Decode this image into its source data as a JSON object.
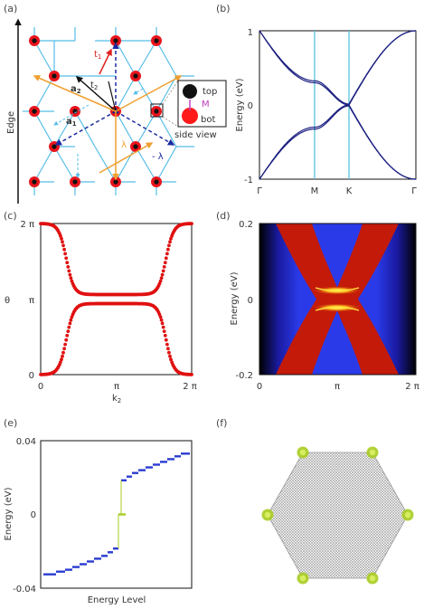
{
  "panels": {
    "a": {
      "label": "(a)",
      "edge": "Edge",
      "a1": "a",
      "a1_sub": "1",
      "a2": "a",
      "a2_sub": "2",
      "t1": "t",
      "t1_sub": "1",
      "t2": "t",
      "t2_sub": "2",
      "lambda": "λ",
      "neg_lambda": "- λ",
      "top": "top",
      "bot": "bot",
      "M": "M",
      "side_view": "side view"
    },
    "b": {
      "label": "(b)"
    },
    "c": {
      "label": "(c)"
    },
    "d": {
      "label": "(d)"
    },
    "e": {
      "label": "(e)"
    },
    "f": {
      "label": "(f)"
    }
  },
  "colors": {
    "lattice": "#55bde8",
    "site": "#e8141c",
    "band": "#1a1e80",
    "marker": "#56c4dc",
    "wcc": "#e01010",
    "level": "#2a3cd0",
    "edge_state": "#a8cc22",
    "arrow_blue": "#1a2aa0",
    "arrow_orange": "#f0a030",
    "arrow_red": "#e02020"
  },
  "chart_data": [
    {
      "panel": "b",
      "type": "line",
      "xlabel": "",
      "ylabel": "Energy (eV)",
      "xticks": [
        "Γ",
        "M",
        "K",
        "Γ"
      ],
      "yticks": [
        "1",
        "0",
        "-1"
      ],
      "ylim": [
        -1,
        1
      ],
      "series": [
        {
          "values_k": [
            0,
            0.33,
            0.43,
            0.48,
            1
          ],
          "values_e": [
            -1,
            -0.34,
            -0.02,
            0.02,
            1
          ]
        },
        {
          "values_k": [
            0,
            0.33,
            0.43,
            0.48,
            1
          ],
          "values_e": [
            1,
            0.34,
            0.02,
            -0.02,
            -1
          ]
        }
      ]
    },
    {
      "panel": "c",
      "type": "scatter",
      "xlabel": "k",
      "xlabel_sub": "2",
      "ylabel": "θ",
      "xticks": [
        "0",
        "π",
        "2 π"
      ],
      "yticks": [
        "2 π",
        "π",
        "0"
      ],
      "xlim": [
        0,
        6.283
      ],
      "ylim": [
        0,
        6.283
      ]
    },
    {
      "panel": "d",
      "type": "heatmap",
      "ylabel": "Energy (eV)",
      "xticks": [
        "0",
        "π",
        "2 π"
      ],
      "yticks": [
        "0.2",
        "0",
        "-0.2"
      ],
      "xlim": [
        0,
        6.283
      ],
      "ylim": [
        -0.2,
        0.2
      ]
    },
    {
      "panel": "e",
      "type": "scatter",
      "xlabel": "Energy Level",
      "ylabel": "Energy (eV)",
      "yticks": [
        "0.04",
        "0",
        "-0.04"
      ],
      "ylim": [
        -0.04,
        0.04
      ]
    }
  ]
}
